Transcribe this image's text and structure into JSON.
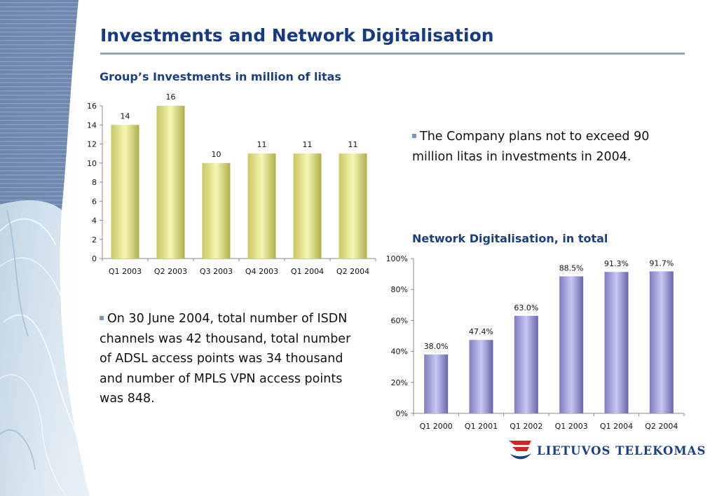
{
  "slide": {
    "title": "Investments and Network Digitalisation"
  },
  "investments_chart": {
    "subtitle": "Group’s Investments in million of litas"
  },
  "digitalisation_chart": {
    "subtitle": "Network Digitalisation, in total"
  },
  "bullets": {
    "plan_text": "The Company plans not to exceed 90 million litas in investments in 2004.",
    "network_text": "On 30 June 2004, total number of ISDN channels was 42 thousand, total number of ADSL access points was 34 thousand and number of MPLS VPN access points was 848."
  },
  "logo": {
    "name": "LIETUVOS TELEKOMAS"
  },
  "colors": {
    "title": "#173a82",
    "bar_yellow": "#eeee96",
    "bar_blue": "#a8a8e6",
    "logo_red": "#d2232a"
  },
  "chart_data": [
    {
      "type": "bar",
      "title": "Group’s Investments in million of litas",
      "categories": [
        "Q1 2003",
        "Q2 2003",
        "Q3 2003",
        "Q4 2003",
        "Q1 2004",
        "Q2 2004"
      ],
      "values": [
        14,
        16,
        10,
        11,
        11,
        11
      ],
      "data_labels": [
        "14",
        "16",
        "10",
        "11",
        "11",
        "11"
      ],
      "ylim": [
        0,
        16
      ],
      "yticks": [
        "0",
        "2",
        "4",
        "6",
        "8",
        "10",
        "12",
        "14",
        "16"
      ],
      "grid": false,
      "legend": "none"
    },
    {
      "type": "bar",
      "title": "Network Digitalisation, in total",
      "categories": [
        "Q1 2000",
        "Q1 2001",
        "Q1 2002",
        "Q1 2003",
        "Q1 2004",
        "Q2 2004"
      ],
      "values": [
        38.0,
        47.4,
        63.0,
        88.5,
        91.3,
        91.7
      ],
      "data_labels": [
        "38.0%",
        "47.4%",
        "63.0%",
        "88.5%",
        "91.3%",
        "91.7%"
      ],
      "ylim": [
        0,
        100
      ],
      "yticks": [
        "0%",
        "20%",
        "40%",
        "60%",
        "80%",
        "100%"
      ],
      "grid": false,
      "legend": "none"
    }
  ]
}
